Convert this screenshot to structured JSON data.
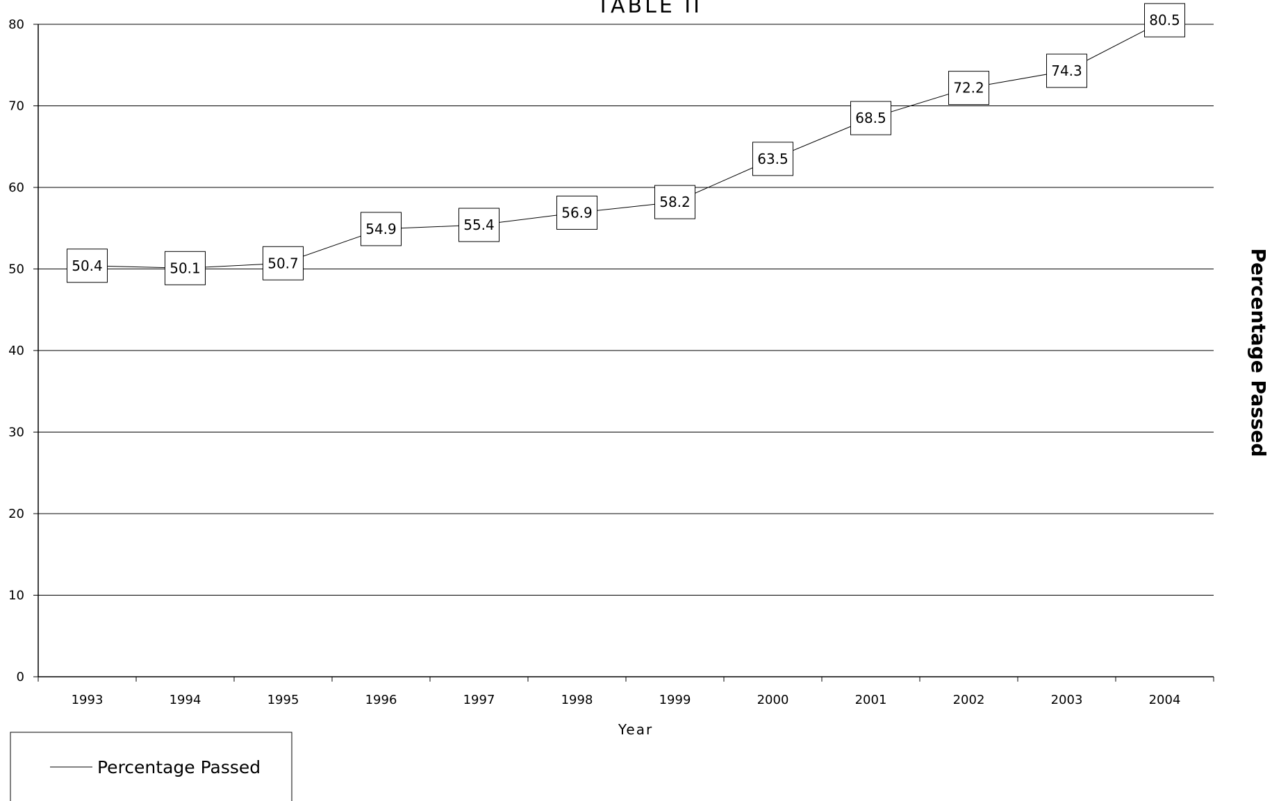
{
  "chart_data": {
    "type": "line",
    "title": "TABLE II",
    "xlabel": "Year",
    "ylabel": "Percentage Passed",
    "categories": [
      "1993",
      "1994",
      "1995",
      "1996",
      "1997",
      "1998",
      "1999",
      "2000",
      "2001",
      "2002",
      "2003",
      "2004"
    ],
    "series": [
      {
        "name": "Percentage Passed",
        "values": [
          50.4,
          50.1,
          50.7,
          54.9,
          55.4,
          56.9,
          58.2,
          63.5,
          68.5,
          72.2,
          74.3,
          80.5
        ],
        "data_labels": [
          "50.4",
          "50.1",
          "50.7",
          "54.9",
          "55.4",
          "56.9",
          "58.2",
          "63.5",
          "68.5",
          "72.2",
          "74.3",
          "80.5"
        ]
      }
    ],
    "ylim": [
      0,
      80
    ],
    "yticks": [
      "0",
      "10",
      "20",
      "30",
      "40",
      "50",
      "60",
      "70",
      "80"
    ],
    "grid": "horizontal",
    "legend": {
      "position": "bottom-left",
      "entries": [
        "Percentage Passed"
      ]
    },
    "colors": {
      "line": "#000000",
      "grid": "#000000",
      "background": "#ffffff"
    }
  }
}
